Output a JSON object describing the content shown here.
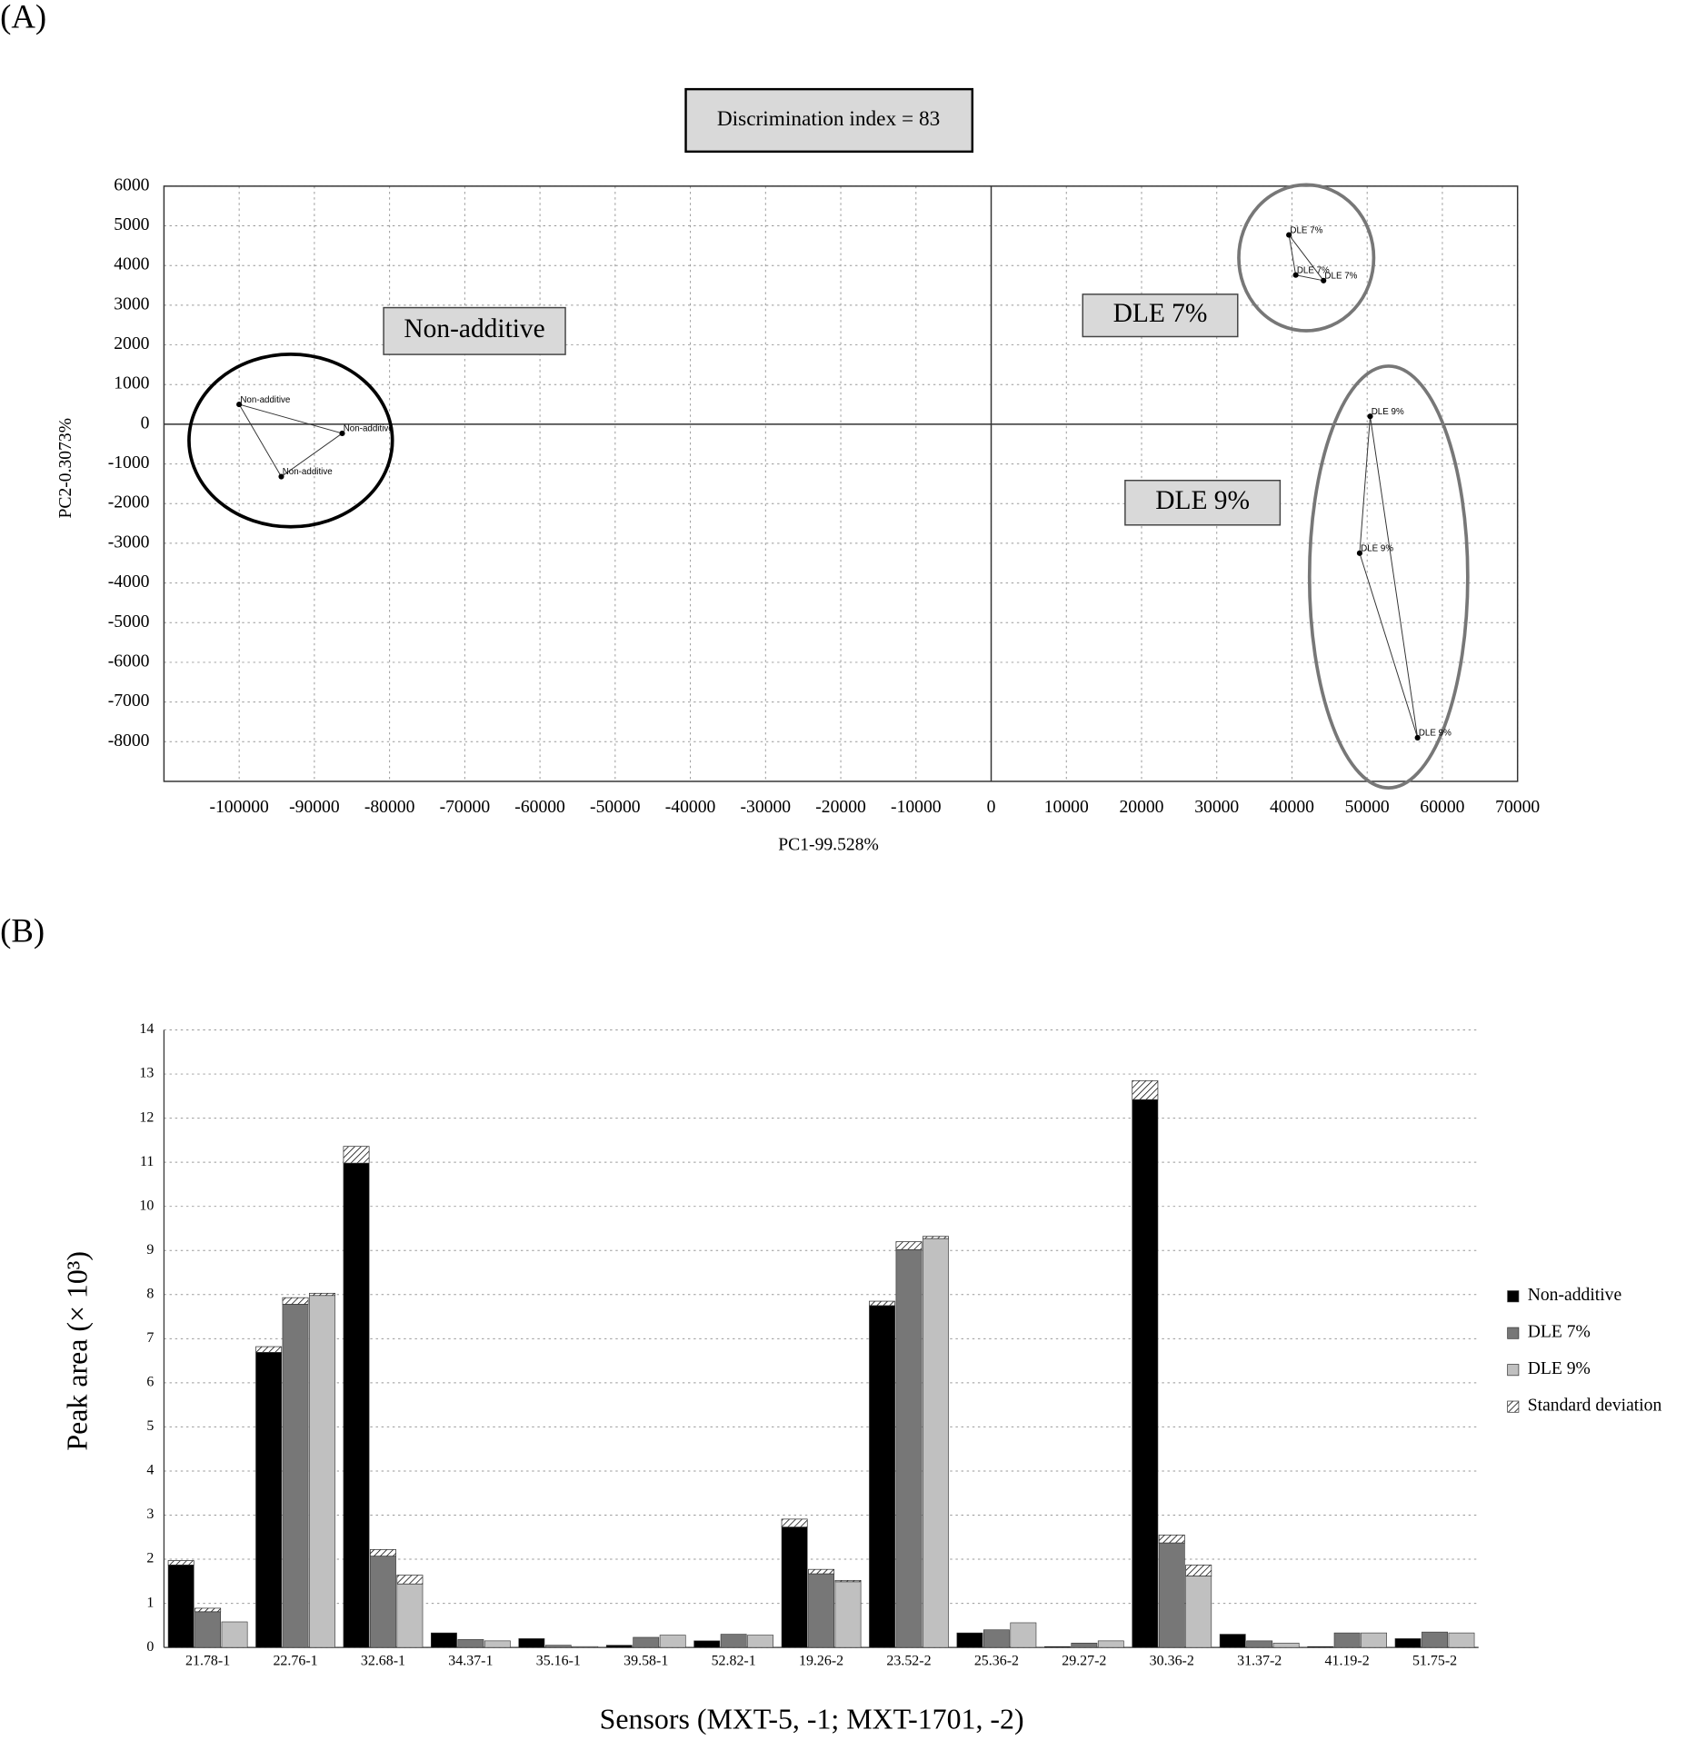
{
  "chart_data": [
    {
      "type": "scatter",
      "panel": "(A)",
      "title": "Discrimination index = 83",
      "xlabel": "PC1-99.528%",
      "ylabel": "PC2-0.3073%",
      "xlim": [
        -110000,
        70000
      ],
      "ylim": [
        -9000,
        6000
      ],
      "xticks": [
        -100000,
        -90000,
        -80000,
        -70000,
        -60000,
        -50000,
        -40000,
        -30000,
        -20000,
        -10000,
        0,
        10000,
        20000,
        30000,
        40000,
        50000,
        60000,
        70000
      ],
      "yticks": [
        6000,
        5000,
        4000,
        3000,
        2000,
        1000,
        0,
        -1000,
        -2000,
        -3000,
        -4000,
        -5000,
        -6000,
        -7000,
        -8000
      ],
      "grid": true,
      "series": [
        {
          "name": "Non-additive",
          "color": "#000000",
          "x": [
            -100000,
            -86300,
            -94400
          ],
          "values": [
            500,
            -230,
            -1320
          ]
        },
        {
          "name": "DLE 7%",
          "color": "#777777",
          "x": [
            39600,
            40500,
            44200
          ],
          "values": [
            4770,
            3760,
            3620
          ]
        },
        {
          "name": "DLE 9%",
          "color": "#777777",
          "x": [
            50400,
            49000,
            56700
          ],
          "values": [
            200,
            -3250,
            -7900
          ]
        }
      ]
    },
    {
      "type": "bar",
      "panel": "(B)",
      "xlabel": "Sensors (MXT-5, -1; MXT-1701, -2)",
      "ylabel": "Peak area (× 10³)",
      "categories": [
        "21.78-1",
        "22.76-1",
        "32.68-1",
        "34.37-1",
        "35.16-1",
        "39.58-1",
        "52.82-1",
        "19.26-2",
        "23.52-2",
        "25.36-2",
        "29.27-2",
        "30.36-2",
        "31.37-2",
        "41.19-2",
        "51.75-2"
      ],
      "ylim": [
        0,
        14
      ],
      "yticks": [
        0,
        1,
        2,
        3,
        4,
        5,
        6,
        7,
        8,
        9,
        10,
        11,
        12,
        13,
        14
      ],
      "grid": true,
      "legend": "right",
      "error_label": "Standard deviation",
      "series": [
        {
          "name": "Non-additive",
          "color": "#000000",
          "values": [
            1.87,
            6.69,
            10.98,
            0.33,
            0.2,
            0.05,
            0.15,
            2.73,
            7.75,
            0.33,
            0.02,
            12.42,
            0.3,
            0.02,
            0.2
          ],
          "errors": [
            0.1,
            0.13,
            0.38,
            null,
            null,
            null,
            null,
            0.18,
            0.1,
            null,
            null,
            0.43,
            null,
            null,
            null
          ]
        },
        {
          "name": "DLE 7%",
          "color": "#777777",
          "values": [
            0.81,
            7.78,
            2.07,
            0.18,
            0.05,
            0.23,
            0.3,
            1.67,
            9.02,
            0.4,
            0.1,
            2.37,
            0.15,
            0.33,
            0.35
          ],
          "errors": [
            0.08,
            0.15,
            0.15,
            null,
            null,
            null,
            null,
            0.1,
            0.18,
            null,
            null,
            0.18,
            null,
            null,
            null
          ]
        },
        {
          "name": "DLE 9%",
          "color": "#c0c0c0",
          "values": [
            0.58,
            7.98,
            1.44,
            0.15,
            0.02,
            0.28,
            0.28,
            1.49,
            9.27,
            0.56,
            0.15,
            1.62,
            0.1,
            0.33,
            0.33
          ],
          "errors": [
            null,
            0.05,
            0.2,
            null,
            null,
            null,
            null,
            0.03,
            0.05,
            null,
            null,
            0.25,
            null,
            null,
            null
          ]
        }
      ]
    }
  ]
}
